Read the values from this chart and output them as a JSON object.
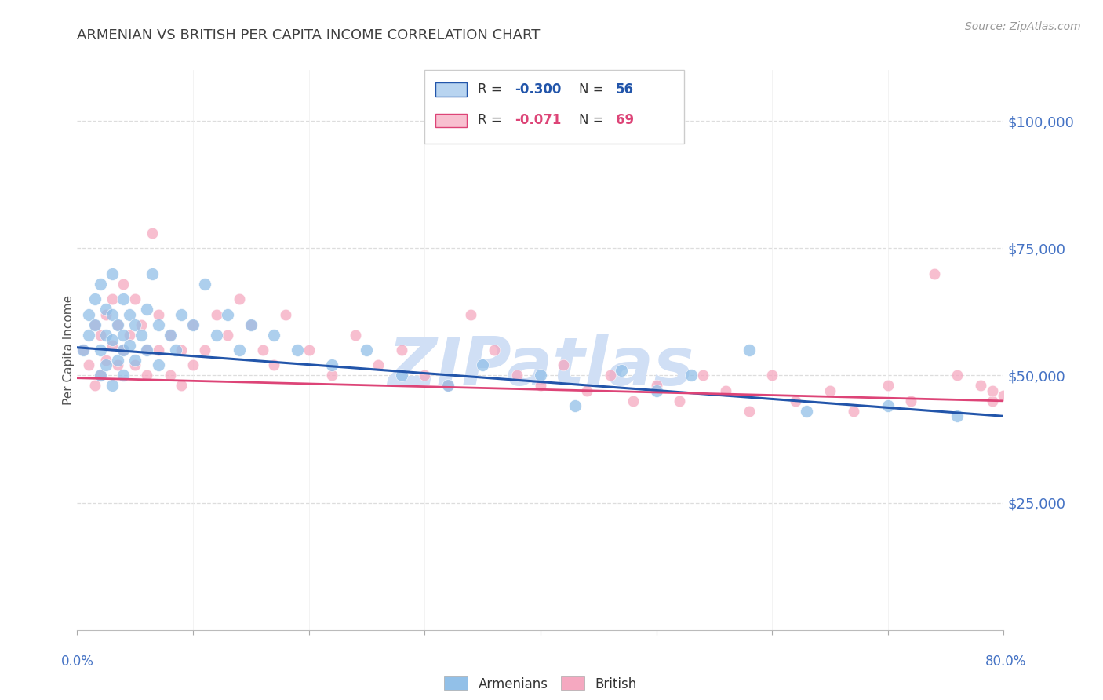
{
  "title": "ARMENIAN VS BRITISH PER CAPITA INCOME CORRELATION CHART",
  "source": "Source: ZipAtlas.com",
  "ylabel": "Per Capita Income",
  "ymin": 0,
  "ymax": 110000,
  "xmin": 0.0,
  "xmax": 0.8,
  "armenian_R": -0.3,
  "armenian_N": 56,
  "british_R": -0.071,
  "british_N": 69,
  "armenian_color": "#92C0E8",
  "british_color": "#F5A8C0",
  "armenian_line_color": "#2255AA",
  "british_line_color": "#DD4477",
  "watermark": "ZIPatlas",
  "watermark_color": "#D0DFF5",
  "background_color": "#FFFFFF",
  "grid_color": "#DDDDDD",
  "axis_label_color": "#4472C4",
  "title_color": "#404040",
  "armenian_x": [
    0.005,
    0.01,
    0.01,
    0.015,
    0.015,
    0.02,
    0.02,
    0.02,
    0.025,
    0.025,
    0.025,
    0.03,
    0.03,
    0.03,
    0.03,
    0.035,
    0.035,
    0.04,
    0.04,
    0.04,
    0.04,
    0.045,
    0.045,
    0.05,
    0.05,
    0.055,
    0.06,
    0.06,
    0.065,
    0.07,
    0.07,
    0.08,
    0.085,
    0.09,
    0.1,
    0.11,
    0.12,
    0.13,
    0.14,
    0.15,
    0.17,
    0.19,
    0.22,
    0.25,
    0.28,
    0.32,
    0.35,
    0.4,
    0.43,
    0.47,
    0.5,
    0.53,
    0.58,
    0.63,
    0.7,
    0.76
  ],
  "armenian_y": [
    55000,
    58000,
    62000,
    60000,
    65000,
    68000,
    55000,
    50000,
    63000,
    58000,
    52000,
    70000,
    62000,
    57000,
    48000,
    60000,
    53000,
    65000,
    58000,
    55000,
    50000,
    62000,
    56000,
    60000,
    53000,
    58000,
    63000,
    55000,
    70000,
    60000,
    52000,
    58000,
    55000,
    62000,
    60000,
    68000,
    58000,
    62000,
    55000,
    60000,
    58000,
    55000,
    52000,
    55000,
    50000,
    48000,
    52000,
    50000,
    44000,
    51000,
    47000,
    50000,
    55000,
    43000,
    44000,
    42000
  ],
  "british_x": [
    0.005,
    0.01,
    0.015,
    0.015,
    0.02,
    0.02,
    0.025,
    0.025,
    0.03,
    0.03,
    0.035,
    0.035,
    0.04,
    0.04,
    0.045,
    0.05,
    0.05,
    0.055,
    0.06,
    0.06,
    0.065,
    0.07,
    0.07,
    0.08,
    0.08,
    0.09,
    0.09,
    0.1,
    0.1,
    0.11,
    0.12,
    0.13,
    0.14,
    0.15,
    0.16,
    0.17,
    0.18,
    0.2,
    0.22,
    0.24,
    0.26,
    0.28,
    0.3,
    0.32,
    0.34,
    0.36,
    0.38,
    0.4,
    0.42,
    0.44,
    0.46,
    0.48,
    0.5,
    0.52,
    0.54,
    0.56,
    0.58,
    0.6,
    0.62,
    0.65,
    0.67,
    0.7,
    0.72,
    0.74,
    0.76,
    0.78,
    0.79,
    0.79,
    0.8
  ],
  "british_y": [
    55000,
    52000,
    60000,
    48000,
    58000,
    50000,
    62000,
    53000,
    65000,
    56000,
    60000,
    52000,
    68000,
    55000,
    58000,
    65000,
    52000,
    60000,
    55000,
    50000,
    78000,
    62000,
    55000,
    58000,
    50000,
    55000,
    48000,
    60000,
    52000,
    55000,
    62000,
    58000,
    65000,
    60000,
    55000,
    52000,
    62000,
    55000,
    50000,
    58000,
    52000,
    55000,
    50000,
    48000,
    62000,
    55000,
    50000,
    48000,
    52000,
    47000,
    50000,
    45000,
    48000,
    45000,
    50000,
    47000,
    43000,
    50000,
    45000,
    47000,
    43000,
    48000,
    45000,
    70000,
    50000,
    48000,
    45000,
    47000,
    46000
  ],
  "scatter_size_armenian": 130,
  "scatter_size_british": 110,
  "scatter_alpha": 0.75,
  "legend_box_color_armenian": "#B8D4F0",
  "legend_box_color_british": "#F8C0D0"
}
